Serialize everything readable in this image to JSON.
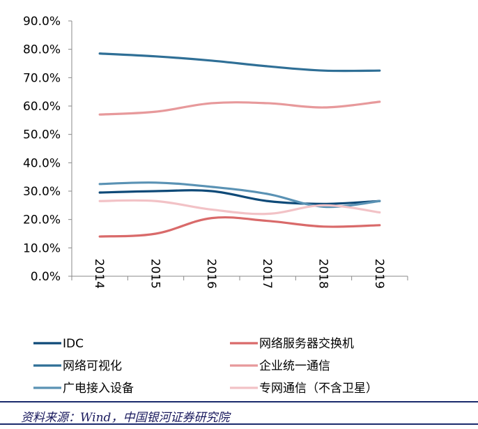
{
  "chart_data": {
    "type": "line",
    "categories": [
      "2014",
      "2015",
      "2016",
      "2017",
      "2018",
      "2019"
    ],
    "ylim": [
      0,
      90
    ],
    "yticks": [
      "0.0%",
      "10.0%",
      "20.0%",
      "30.0%",
      "40.0%",
      "50.0%",
      "60.0%",
      "70.0%",
      "80.0%",
      "90.0%"
    ],
    "series": [
      {
        "name": "IDC",
        "values": [
          29.5,
          30.0,
          30.0,
          26.5,
          25.5,
          26.5
        ],
        "color": "#0f4a78"
      },
      {
        "name": "网络服务器交换机",
        "values": [
          14.0,
          15.0,
          20.5,
          19.5,
          17.5,
          18.0
        ],
        "color": "#d96a6a"
      },
      {
        "name": "网络可视化",
        "values": [
          78.5,
          77.5,
          76.0,
          74.0,
          72.5,
          72.5
        ],
        "color": "#2f6f96"
      },
      {
        "name": "企业统一通信",
        "values": [
          57.0,
          58.0,
          61.0,
          61.0,
          59.5,
          61.5
        ],
        "color": "#e7999b"
      },
      {
        "name": "广电接入设备",
        "values": [
          32.5,
          33.0,
          31.5,
          29.0,
          24.5,
          26.5
        ],
        "color": "#5a92b4"
      },
      {
        "name": "专网通信（不含卫星）",
        "values": [
          26.5,
          26.5,
          23.5,
          22.0,
          25.0,
          22.5
        ],
        "color": "#f2c2c6"
      }
    ],
    "grid": false,
    "legend_position": "bottom"
  },
  "footer": {
    "source": "资料来源：Wind，中国银河证券研究院"
  }
}
